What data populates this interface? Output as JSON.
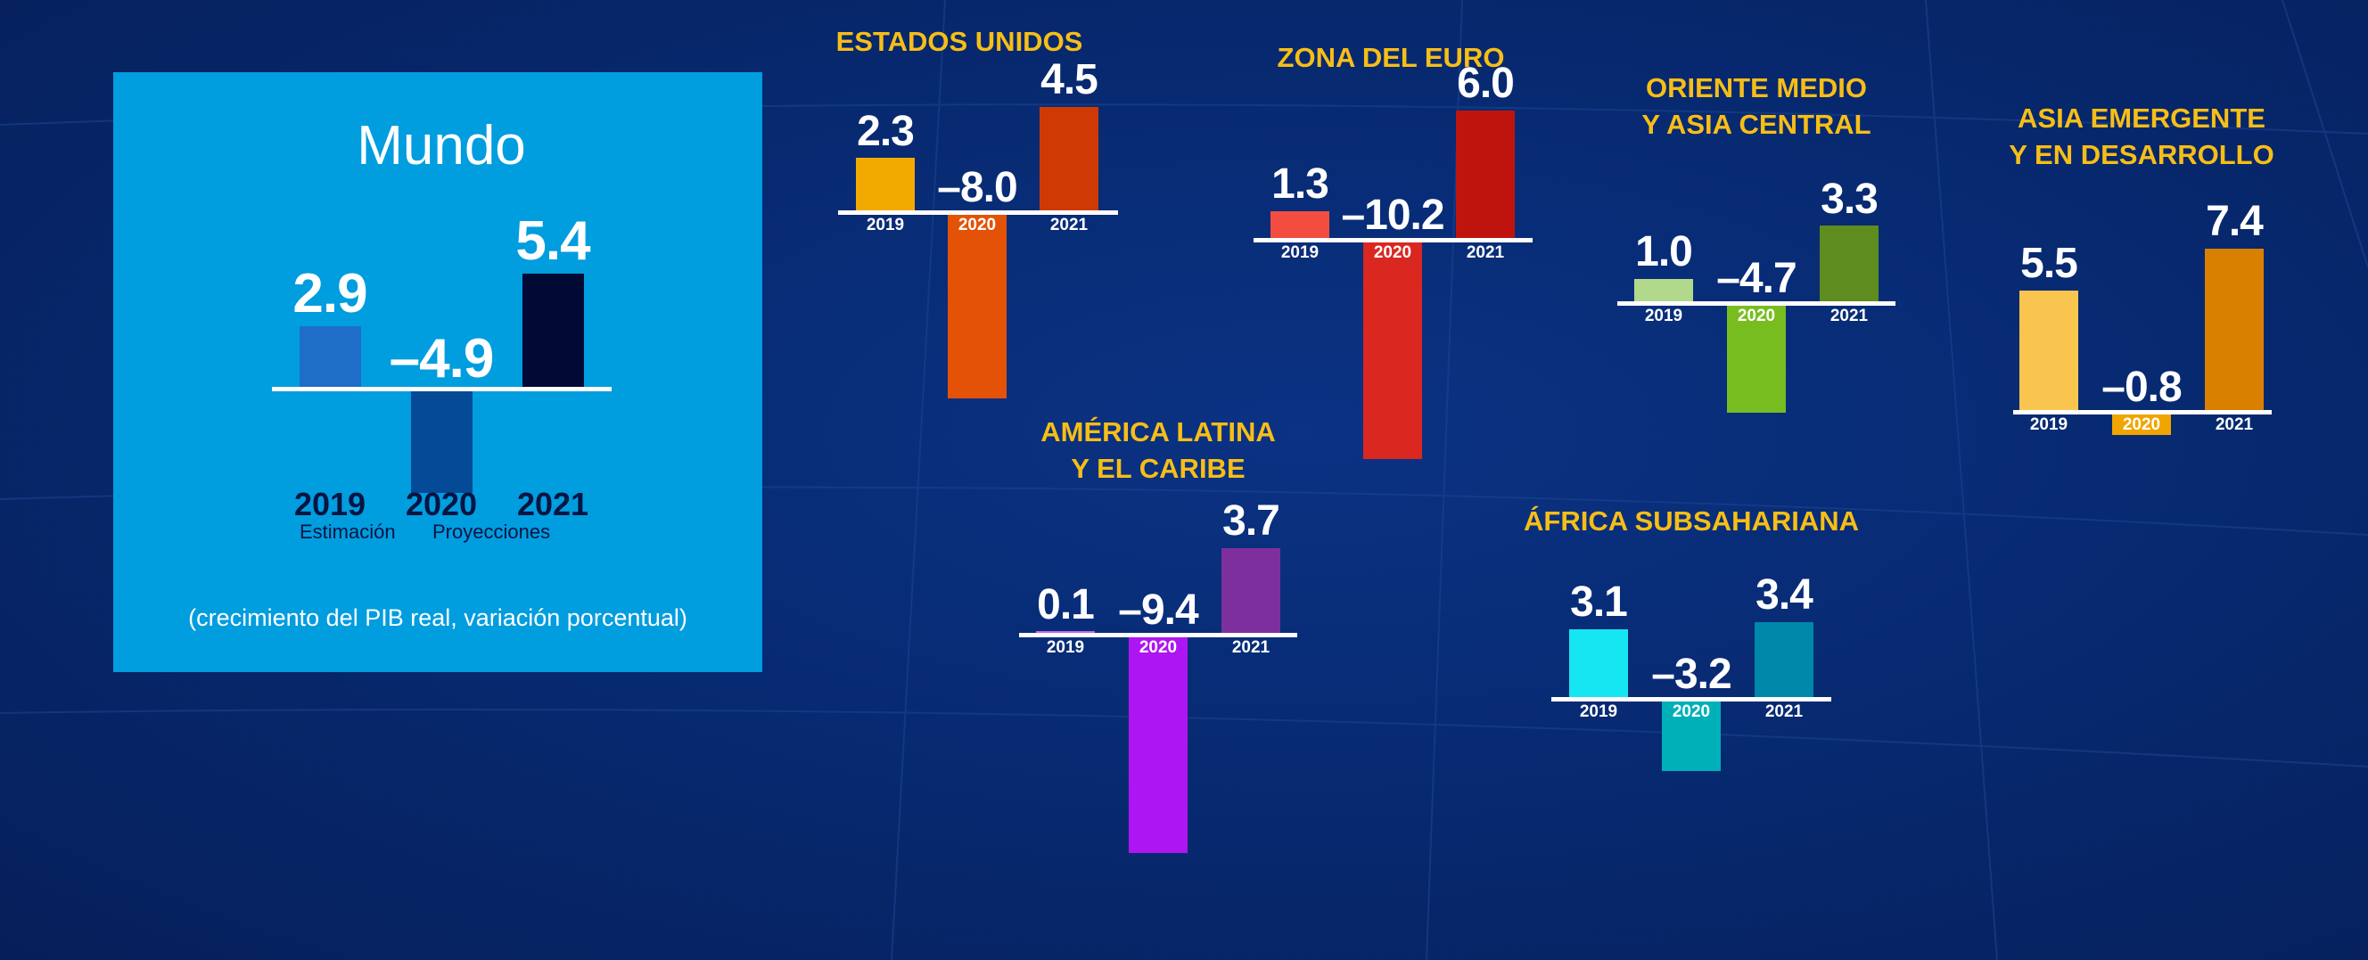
{
  "chart_data": [
    {
      "type": "bar",
      "id": "mundo",
      "title": "Mundo",
      "categories": [
        "2019",
        "2020",
        "2021"
      ],
      "values": [
        2.9,
        -4.9,
        5.4
      ],
      "value_labels": [
        "2.9",
        "–4.9",
        "5.4"
      ],
      "colors": [
        "#1e6ec8",
        "#044a96",
        "#000a35"
      ],
      "category_notes": {
        "estimate": "Estimación",
        "projections": "Proyecciones"
      },
      "footnote": "(crecimiento del PIB real, variación porcentual)"
    },
    {
      "type": "bar",
      "id": "eeuu",
      "title": [
        "ESTADOS UNIDOS"
      ],
      "categories": [
        "2019",
        "2020",
        "2021"
      ],
      "values": [
        2.3,
        -8.0,
        4.5
      ],
      "value_labels": [
        "2.3",
        "–8.0",
        "4.5"
      ],
      "colors": [
        "#f2aa00",
        "#e35206",
        "#cf3a04"
      ]
    },
    {
      "type": "bar",
      "id": "euro",
      "title": [
        "ZONA DEL EURO"
      ],
      "categories": [
        "2019",
        "2020",
        "2021"
      ],
      "values": [
        1.3,
        -10.2,
        6.0
      ],
      "value_labels": [
        "1.3",
        "–10.2",
        "6.0"
      ],
      "colors": [
        "#f34d42",
        "#da2720",
        "#bf140d"
      ]
    },
    {
      "type": "bar",
      "id": "ome",
      "title": [
        "ORIENTE MEDIO",
        "Y ASIA CENTRAL"
      ],
      "categories": [
        "2019",
        "2020",
        "2021"
      ],
      "values": [
        1.0,
        -4.7,
        3.3
      ],
      "value_labels": [
        "1.0",
        "–4.7",
        "3.3"
      ],
      "colors": [
        "#b2d88c",
        "#78bd1f",
        "#5f8c1e"
      ]
    },
    {
      "type": "bar",
      "id": "asia",
      "title": [
        "ASIA EMERGENTE",
        "Y EN DESARROLLO"
      ],
      "categories": [
        "2019",
        "2020",
        "2021"
      ],
      "values": [
        5.5,
        -0.8,
        7.4
      ],
      "value_labels": [
        "5.5",
        "–0.8",
        "7.4"
      ],
      "colors": [
        "#f9c54f",
        "#f0a500",
        "#da8000"
      ]
    },
    {
      "type": "bar",
      "id": "latam",
      "title": [
        "AMÉRICA LATINA",
        "Y EL CARIBE"
      ],
      "categories": [
        "2019",
        "2020",
        "2021"
      ],
      "values": [
        0.1,
        -9.4,
        3.7
      ],
      "value_labels": [
        "0.1",
        "–9.4",
        "3.7"
      ],
      "colors": [
        "#c865f5",
        "#ad15f2",
        "#7e2f9e"
      ]
    },
    {
      "type": "bar",
      "id": "africa",
      "title": [
        "ÁFRICA SUBSAHARIANA"
      ],
      "categories": [
        "2019",
        "2020",
        "2021"
      ],
      "values": [
        3.1,
        -3.2,
        3.4
      ],
      "value_labels": [
        "3.1",
        "–3.2",
        "3.4"
      ],
      "colors": [
        "#16e6f2",
        "#00b0b8",
        "#0088aa"
      ]
    }
  ],
  "colors": {
    "background": "#072a72",
    "world_panel": "#009ddf",
    "title": "#f7be16"
  }
}
